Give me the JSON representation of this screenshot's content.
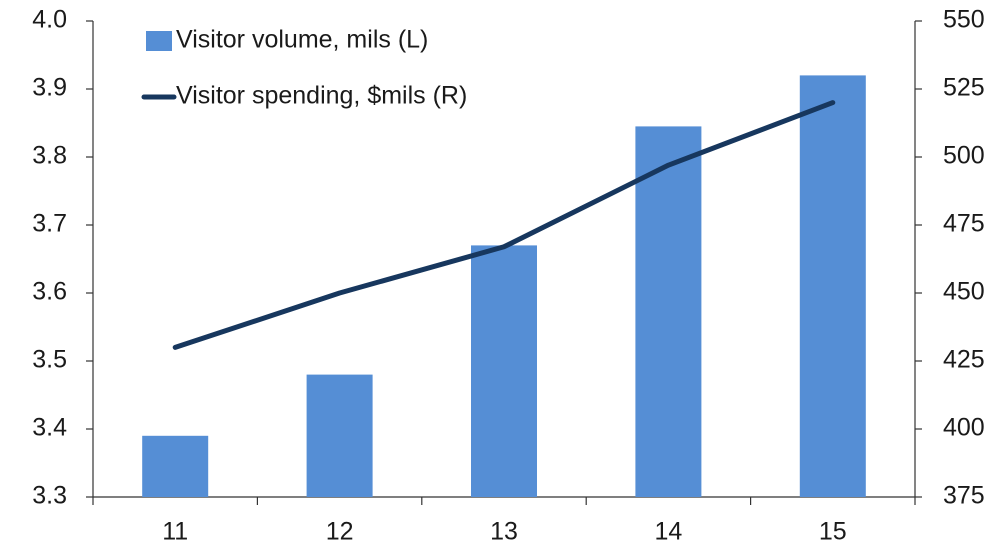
{
  "chart_data": {
    "type": "bar_line",
    "categories": [
      "11",
      "12",
      "13",
      "14",
      "15"
    ],
    "series": [
      {
        "name": "Visitor volume, mils (L)",
        "type": "bar",
        "color": "#558ed5",
        "axis": "y",
        "values": [
          3.39,
          3.48,
          3.67,
          3.845,
          3.92
        ]
      },
      {
        "name": "Visitor spending, $mils (R)",
        "type": "line",
        "color": "#17375e",
        "axis": "y2",
        "values": [
          430,
          450,
          467,
          497,
          520
        ]
      }
    ],
    "ylim": [
      3.3,
      4.0
    ],
    "yticks": [
      {
        "value": 3.3,
        "label": "3.3"
      },
      {
        "value": 3.4,
        "label": "3.4"
      },
      {
        "value": 3.5,
        "label": "3.5"
      },
      {
        "value": 3.6,
        "label": "3.6"
      },
      {
        "value": 3.7,
        "label": "3.7"
      },
      {
        "value": 3.8,
        "label": "3.8"
      },
      {
        "value": 3.9,
        "label": "3.9"
      },
      {
        "value": 4.0,
        "label": "4.0"
      }
    ],
    "y2lim": [
      375,
      550
    ],
    "y2ticks": [
      375,
      400,
      425,
      450,
      475,
      500,
      525,
      550
    ],
    "legend": "upper left",
    "grid": false
  }
}
